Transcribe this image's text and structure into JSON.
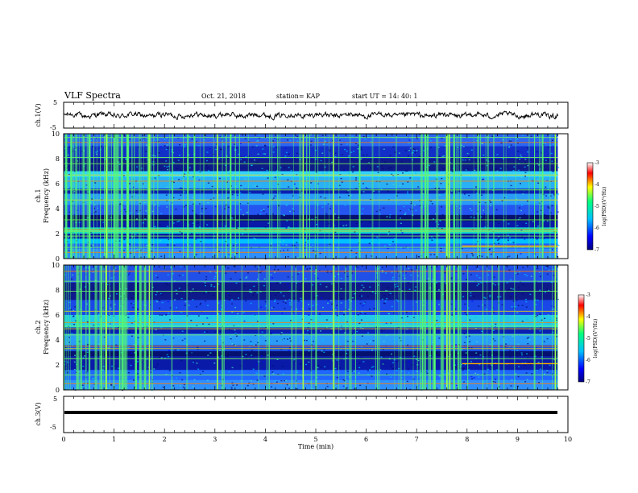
{
  "header": {
    "title": "VLF Spectra",
    "date": "Oct. 21, 2018",
    "station": "station= KAP",
    "start": "start  UT =   14: 40: 1"
  },
  "chart_data": [
    {
      "type": "line",
      "name": "waveform ch.1",
      "ylabel": "ch.1(V)",
      "ylim": [
        -5,
        5
      ],
      "ytick_labels": [
        "5",
        "-5"
      ],
      "xlim": [
        0,
        10
      ],
      "series": [
        {
          "style": "noisy waveform, amplitude about ±1.5 V around 0"
        }
      ]
    },
    {
      "type": "heatmap",
      "name": "spectrogram ch.1",
      "ylabel": "ch.1\nFrequency (kHz)",
      "ylim": [
        0,
        10
      ],
      "ytick_labels": [
        "0",
        "2",
        "4",
        "6",
        "8",
        "10"
      ],
      "xlim": [
        0,
        9.8
      ],
      "colorbar": {
        "label": "log(PSD)(V²/Hz)",
        "range": [
          -7,
          -3
        ],
        "tick_labels": [
          "-3",
          "-4",
          "-5",
          "-6",
          "-7"
        ],
        "colormap": [
          "#00007f",
          "#0000ff",
          "#00bfff",
          "#00ff80",
          "#ffff00",
          "#ff0000",
          "#ffffff"
        ]
      },
      "bright_band_khz": [
        2.3,
        1.0
      ]
    },
    {
      "type": "heatmap",
      "name": "spectrogram ch.2",
      "ylabel": "ch.2\nFrequency (kHz)",
      "ylim": [
        0,
        10
      ],
      "ytick_labels": [
        "0",
        "2",
        "4",
        "6",
        "8",
        "10"
      ],
      "xlim": [
        0,
        9.8
      ],
      "colorbar": {
        "label": "log(PSD)(V²/Hz)",
        "range": [
          -7,
          -3
        ],
        "tick_labels": [
          "-3",
          "-4",
          "-5",
          "-6",
          "-7"
        ],
        "colormap": [
          "#00007f",
          "#0000ff",
          "#00bfff",
          "#00ff80",
          "#ffff00",
          "#ff0000",
          "#ffffff"
        ]
      },
      "bright_band_khz": [
        3.3,
        5.5
      ]
    },
    {
      "type": "line",
      "name": "waveform ch.3",
      "ylabel": "ch.3(V)",
      "ylim": [
        -5,
        5
      ],
      "ytick_labels": [
        "5",
        "-5"
      ],
      "xlim": [
        0,
        10
      ],
      "series": [
        {
          "style": "flat line",
          "value": 0
        }
      ]
    }
  ],
  "x_axis": {
    "label": "Time (min)",
    "ticks": [
      0,
      1,
      2,
      3,
      4,
      5,
      6,
      7,
      8,
      9,
      10
    ]
  }
}
